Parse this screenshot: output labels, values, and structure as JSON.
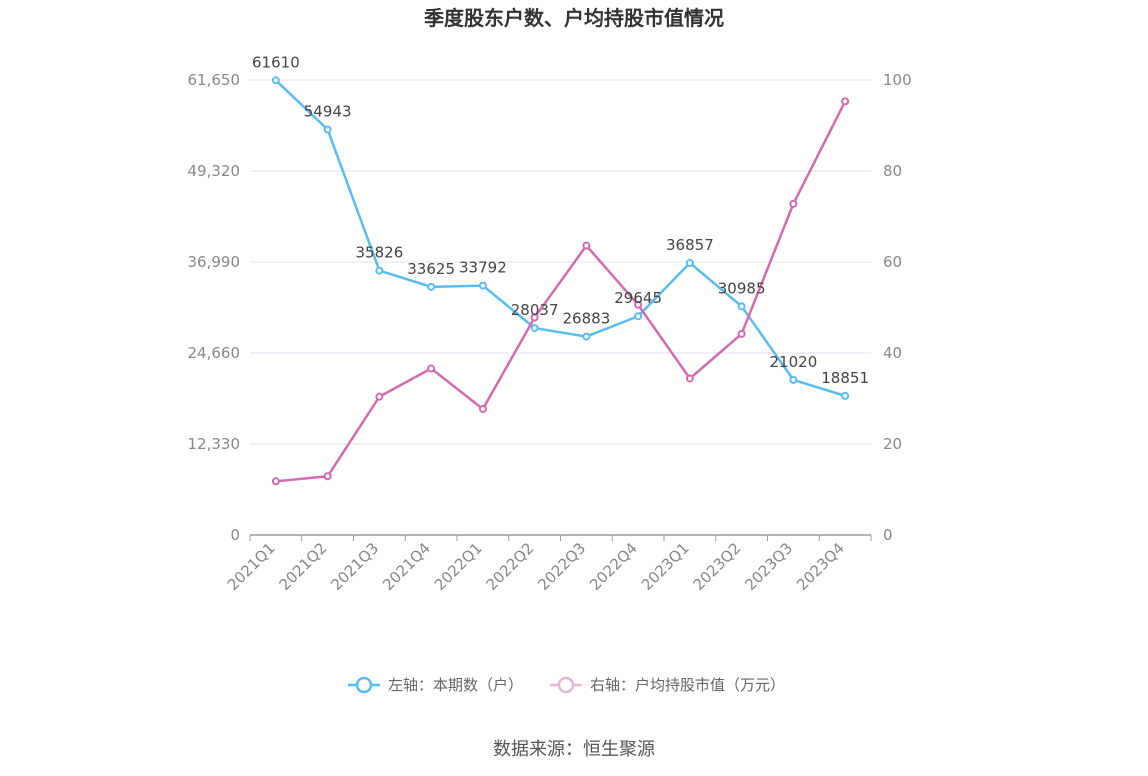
{
  "chart_data": {
    "type": "line",
    "title": "季度股东户数、户均持股市值情况",
    "categories": [
      "2021Q1",
      "2021Q2",
      "2021Q3",
      "2021Q4",
      "2022Q1",
      "2022Q2",
      "2022Q3",
      "2022Q4",
      "2023Q1",
      "2023Q2",
      "2023Q3",
      "2023Q4"
    ],
    "left_axis": {
      "ticks": [
        "0",
        "12,330",
        "24,660",
        "36,990",
        "49,320",
        "61,650"
      ],
      "ylim": [
        0,
        61650
      ]
    },
    "right_axis": {
      "ticks": [
        "0",
        "20",
        "40",
        "60",
        "80",
        "100"
      ],
      "ylim": [
        0,
        100
      ]
    },
    "series": [
      {
        "name": "左轴：本期数（户）",
        "axis": "left",
        "color": "#5bbcf0",
        "values": [
          61610,
          54943,
          35826,
          33625,
          33792,
          28037,
          26883,
          29645,
          36857,
          30985,
          21020,
          18851
        ],
        "labels": [
          "61610",
          "54943",
          "35826",
          "33625",
          "33792",
          "28037",
          "26883",
          "29645",
          "36857",
          "30985",
          "21020",
          "18851"
        ]
      },
      {
        "name": "右轴：户均持股市值（万元）",
        "axis": "right",
        "color": "#d36bb0",
        "values": [
          11.8,
          12.9,
          30.4,
          36.6,
          27.7,
          47.8,
          63.6,
          50.6,
          34.4,
          44.2,
          72.8,
          95.3
        ]
      }
    ],
    "grid": true,
    "legend_position": "bottom"
  },
  "footer": {
    "source": "数据来源：恒生聚源"
  }
}
